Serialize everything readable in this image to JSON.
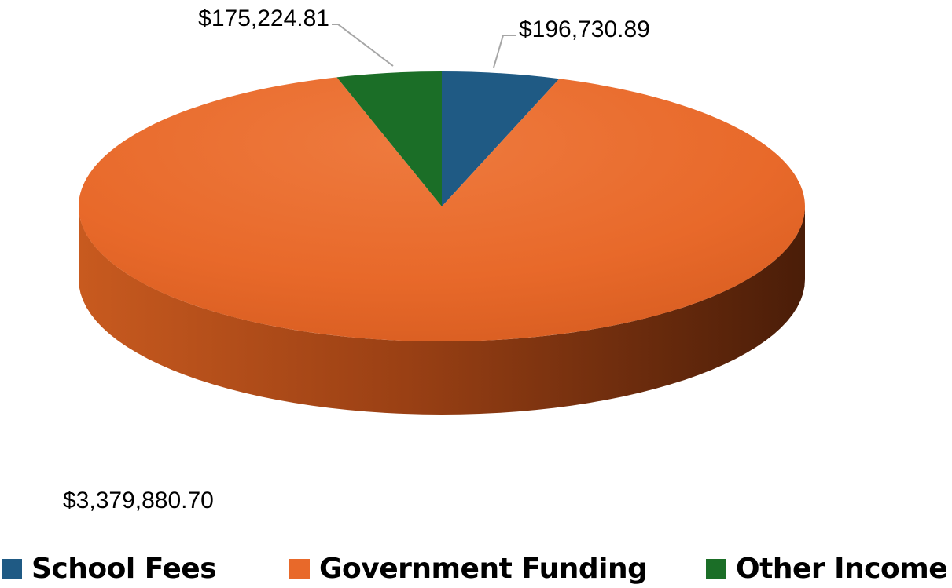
{
  "chart_data": {
    "type": "pie",
    "style": "3d",
    "categories": [
      "School Fees",
      "Government Funding",
      "Other Income"
    ],
    "values": [
      196730.89,
      3379880.7,
      175224.81
    ],
    "data_labels": [
      "$196,730.89",
      "$3,379,880.70",
      "$175,224.81"
    ],
    "colors": [
      "#1f5a84",
      "#e8692a",
      "#1b6e27"
    ],
    "legend_position": "bottom",
    "title": ""
  },
  "legend": {
    "items": [
      {
        "label": "School Fees",
        "color": "#1f5a84"
      },
      {
        "label": "Government Funding",
        "color": "#e8692a"
      },
      {
        "label": "Other Income",
        "color": "#1b6e27"
      }
    ]
  }
}
